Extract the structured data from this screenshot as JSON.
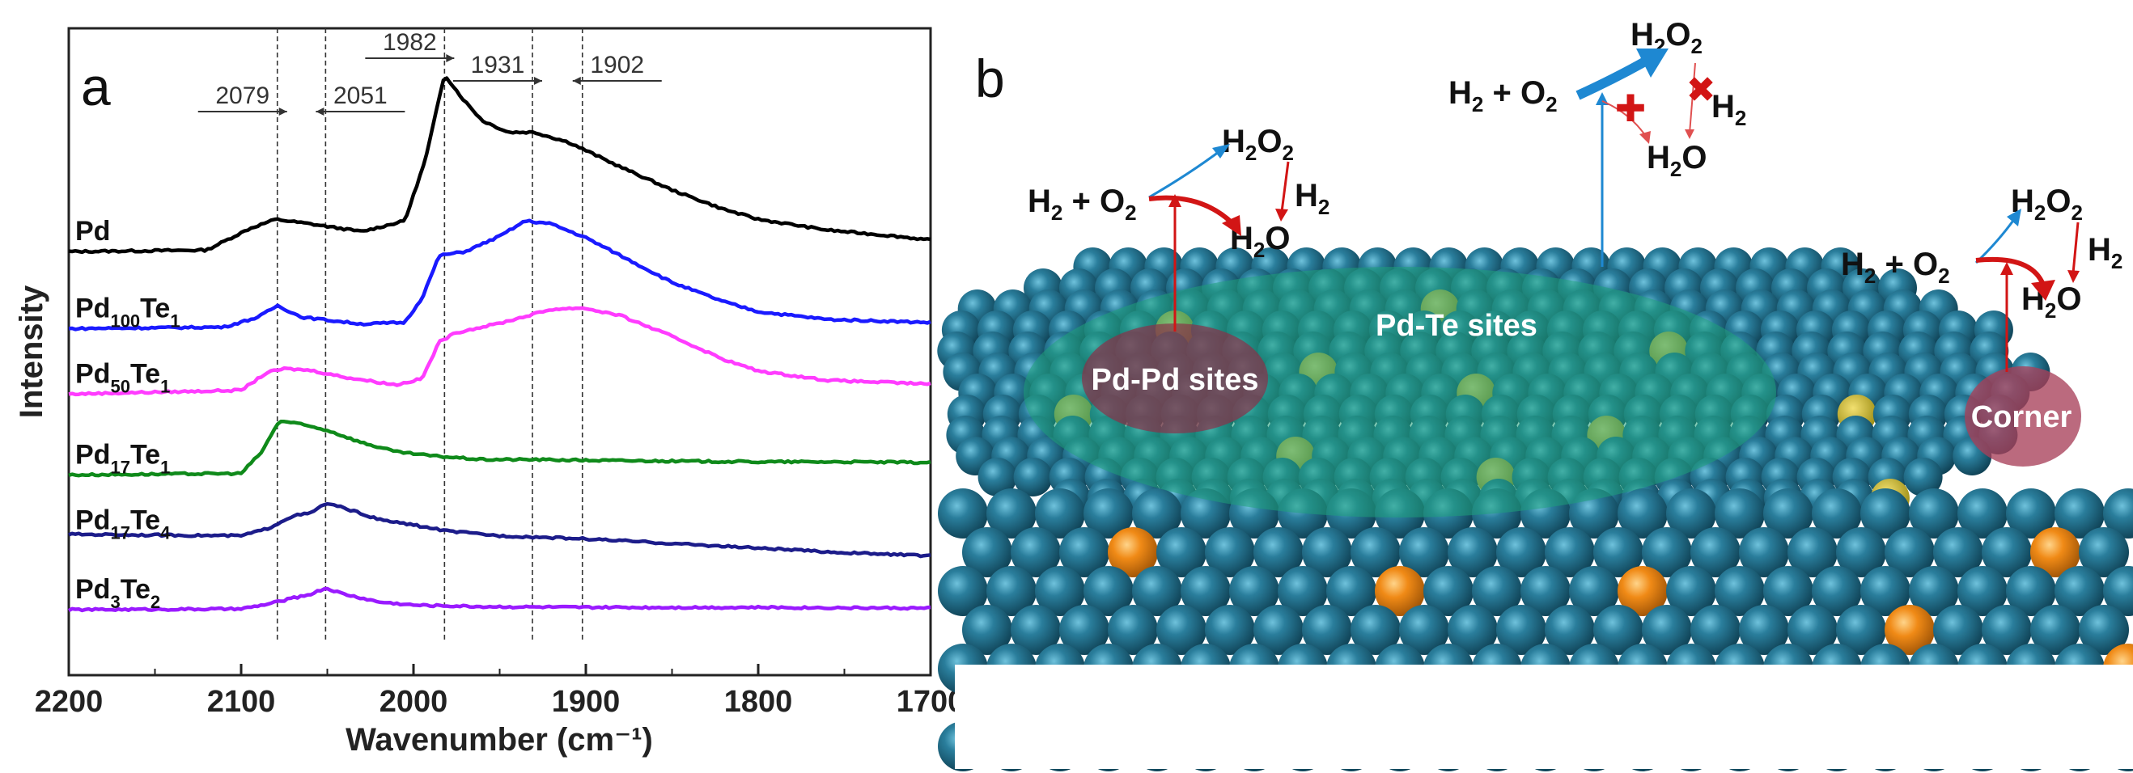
{
  "panel_a": {
    "letter": "a",
    "chart_data": {
      "type": "line",
      "title": "",
      "xlabel": "Wavenumber (cm⁻¹)",
      "ylabel": "Intensity",
      "xlim": [
        2200,
        1700
      ],
      "x_reversed": true,
      "x_ticks": [
        2200,
        2100,
        2000,
        1900,
        1800,
        1700
      ],
      "x_tick_labels": [
        "2200",
        "2100",
        "2000",
        "1900",
        "1800",
        "1700"
      ],
      "y_units": "arbitrary (offset traces)",
      "reference_lines": [
        {
          "x": 2079,
          "label": "2079",
          "arrow": "right"
        },
        {
          "x": 2051,
          "label": "2051",
          "arrow": "left"
        },
        {
          "x": 1982,
          "label": "1982",
          "arrow": "right"
        },
        {
          "x": 1931,
          "label": "1931",
          "arrow": "right"
        },
        {
          "x": 1902,
          "label": "1902",
          "arrow": "left"
        }
      ],
      "series": [
        {
          "name": "Pd",
          "label_base": "Pd",
          "label_sub1": "",
          "label_mid": "",
          "label_sub2": "",
          "color": "#000000",
          "offset": 5.0,
          "points": [
            [
              2200,
              0
            ],
            [
              2120,
              0.02
            ],
            [
              2095,
              0.3
            ],
            [
              2080,
              0.42
            ],
            [
              2060,
              0.36
            ],
            [
              2030,
              0.26
            ],
            [
              2005,
              0.4
            ],
            [
              1993,
              1.2
            ],
            [
              1982,
              2.3
            ],
            [
              1972,
              2.0
            ],
            [
              1960,
              1.7
            ],
            [
              1945,
              1.55
            ],
            [
              1930,
              1.55
            ],
            [
              1910,
              1.42
            ],
            [
              1880,
              1.1
            ],
            [
              1850,
              0.8
            ],
            [
              1820,
              0.55
            ],
            [
              1800,
              0.42
            ],
            [
              1760,
              0.28
            ],
            [
              1720,
              0.2
            ],
            [
              1700,
              0.15
            ]
          ]
        },
        {
          "name": "Pd100Te1",
          "label_base": "Pd",
          "label_sub1": "100",
          "label_mid": "Te",
          "label_sub2": "1",
          "color": "#1a1aff",
          "offset": 4.0,
          "points": [
            [
              2200,
              0
            ],
            [
              2110,
              0.02
            ],
            [
              2090,
              0.15
            ],
            [
              2079,
              0.3
            ],
            [
              2065,
              0.15
            ],
            [
              2030,
              0.06
            ],
            [
              2005,
              0.08
            ],
            [
              1995,
              0.4
            ],
            [
              1985,
              0.95
            ],
            [
              1970,
              1.0
            ],
            [
              1950,
              1.2
            ],
            [
              1935,
              1.4
            ],
            [
              1920,
              1.36
            ],
            [
              1900,
              1.18
            ],
            [
              1880,
              0.95
            ],
            [
              1850,
              0.6
            ],
            [
              1820,
              0.35
            ],
            [
              1800,
              0.22
            ],
            [
              1760,
              0.12
            ],
            [
              1700,
              0.08
            ]
          ]
        },
        {
          "name": "Pd50Te1",
          "label_base": "Pd",
          "label_sub1": "50",
          "label_mid": "Te",
          "label_sub2": "1",
          "color": "#ff3cff",
          "offset": 3.15,
          "points": [
            [
              2200,
              0
            ],
            [
              2100,
              0.05
            ],
            [
              2085,
              0.28
            ],
            [
              2075,
              0.33
            ],
            [
              2060,
              0.31
            ],
            [
              2040,
              0.22
            ],
            [
              2010,
              0.12
            ],
            [
              1995,
              0.2
            ],
            [
              1985,
              0.68
            ],
            [
              1975,
              0.8
            ],
            [
              1950,
              0.92
            ],
            [
              1920,
              1.1
            ],
            [
              1902,
              1.12
            ],
            [
              1880,
              1.02
            ],
            [
              1850,
              0.75
            ],
            [
              1820,
              0.45
            ],
            [
              1800,
              0.3
            ],
            [
              1760,
              0.18
            ],
            [
              1700,
              0.13
            ]
          ]
        },
        {
          "name": "Pd17Te1",
          "label_base": "Pd",
          "label_sub1": "17",
          "label_mid": "Te",
          "label_sub2": "1",
          "color": "#0f8a1a",
          "offset": 2.1,
          "points": [
            [
              2200,
              0
            ],
            [
              2100,
              0.02
            ],
            [
              2088,
              0.3
            ],
            [
              2078,
              0.7
            ],
            [
              2070,
              0.68
            ],
            [
              2050,
              0.58
            ],
            [
              2030,
              0.42
            ],
            [
              2010,
              0.3
            ],
            [
              1990,
              0.25
            ],
            [
              1960,
              0.2
            ],
            [
              1930,
              0.2
            ],
            [
              1900,
              0.19
            ],
            [
              1850,
              0.18
            ],
            [
              1800,
              0.17
            ],
            [
              1750,
              0.17
            ],
            [
              1700,
              0.16
            ]
          ]
        },
        {
          "name": "Pd17Te4",
          "label_base": "Pd",
          "label_sub1": "17",
          "label_mid": "Te",
          "label_sub2": "4",
          "color": "#1c1c8a",
          "offset": 1.25,
          "points": [
            [
              2200,
              0.08
            ],
            [
              2100,
              0.06
            ],
            [
              2085,
              0.15
            ],
            [
              2070,
              0.32
            ],
            [
              2060,
              0.35
            ],
            [
              2051,
              0.48
            ],
            [
              2040,
              0.42
            ],
            [
              2020,
              0.27
            ],
            [
              2000,
              0.2
            ],
            [
              1980,
              0.12
            ],
            [
              1950,
              0.06
            ],
            [
              1900,
              0.02
            ],
            [
              1850,
              -0.04
            ],
            [
              1800,
              -0.1
            ],
            [
              1750,
              -0.16
            ],
            [
              1700,
              -0.2
            ]
          ]
        },
        {
          "name": "Pd3Te2",
          "label_base": "Pd",
          "label_sub1": "3",
          "label_mid": "Te",
          "label_sub2": "2",
          "color": "#9a1aff",
          "offset": 0.35,
          "points": [
            [
              2200,
              0
            ],
            [
              2100,
              0.01
            ],
            [
              2085,
              0.07
            ],
            [
              2070,
              0.15
            ],
            [
              2060,
              0.2
            ],
            [
              2051,
              0.28
            ],
            [
              2040,
              0.2
            ],
            [
              2020,
              0.1
            ],
            [
              2000,
              0.06
            ],
            [
              1960,
              0.04
            ],
            [
              1900,
              0.03
            ],
            [
              1800,
              0.03
            ],
            [
              1700,
              0.02
            ]
          ]
        }
      ]
    }
  },
  "panel_b": {
    "letter": "b",
    "site_labels": {
      "pd_pd": "Pd-Pd sites",
      "pd_te": "Pd-Te sites",
      "corner": "Corner"
    },
    "reactions": {
      "left": {
        "h2": "H",
        "h2_sub": "2",
        "plus": " + ",
        "o2": "O",
        "o2_sub": "2",
        "h2o2_a": "H",
        "h2o2_sub1": "2",
        "h2o2_b": "O",
        "h2o2_sub2": "2",
        "h2o_a": "H",
        "h2o_sub": "2",
        "h2o_b": "O",
        "side_h": "H",
        "side_sub": "2"
      },
      "center": {
        "h2": "H",
        "h2_sub": "2",
        "plus": " + ",
        "o2": "O",
        "o2_sub": "2",
        "h2o2_a": "H",
        "h2o2_sub1": "2",
        "h2o2_b": "O",
        "h2o2_sub2": "2",
        "h2o_a": "H",
        "h2o_sub": "2",
        "h2o_b": "O",
        "side_h": "H",
        "side_sub": "2"
      },
      "right": {
        "h2": "H",
        "h2_sub": "2",
        "plus": " + ",
        "o2": "O",
        "o2_sub": "2",
        "h2o2_a": "H",
        "h2o2_sub1": "2",
        "h2o2_b": "O",
        "h2o2_sub2": "2",
        "h2o_a": "H",
        "h2o_sub": "2",
        "h2o_b": "O",
        "side_h": "H",
        "side_sub": "2"
      }
    },
    "colors": {
      "pd_atom": "#1f6b86",
      "te_atom": "#f08a16",
      "te_site_region": "#1fa07a",
      "pd_site_region": "#8a3048",
      "arrow_red": "#d21515",
      "arrow_blue": "#1e88d2"
    }
  }
}
